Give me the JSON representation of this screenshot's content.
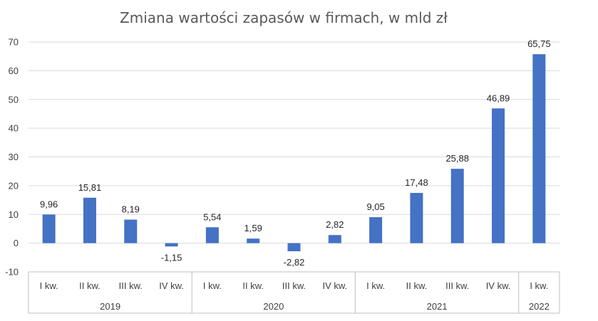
{
  "chart_data": {
    "type": "bar",
    "title": "Zmiana wartości zapasów w firmach, w mld zł",
    "xlabel": "",
    "ylabel": "",
    "ylim": [
      -10,
      70
    ],
    "yticks": [
      -10,
      0,
      10,
      20,
      30,
      40,
      50,
      60,
      70
    ],
    "grid": true,
    "legend": "none",
    "bar_color": "#4472c4",
    "groups": [
      {
        "label": "2019",
        "categories": [
          "I kw.",
          "II kw.",
          "III kw.",
          "IV kw."
        ],
        "values": [
          9.96,
          15.81,
          8.19,
          -1.15
        ],
        "value_labels": [
          "9,96",
          "15,81",
          "8,19",
          "-1,15"
        ]
      },
      {
        "label": "2020",
        "categories": [
          "I kw.",
          "II kw.",
          "III kw.",
          "IV kw."
        ],
        "values": [
          5.54,
          1.59,
          -2.82,
          2.82
        ],
        "value_labels": [
          "5,54",
          "1,59",
          "-2,82",
          "2,82"
        ]
      },
      {
        "label": "2021",
        "categories": [
          "I kw.",
          "II kw.",
          "III kw.",
          "IV kw."
        ],
        "values": [
          9.05,
          17.48,
          25.88,
          46.89
        ],
        "value_labels": [
          "9,05",
          "17,48",
          "25,88",
          "46,89"
        ]
      },
      {
        "label": "2022",
        "categories": [
          "I kw."
        ],
        "values": [
          65.75
        ],
        "value_labels": [
          "65,75"
        ]
      }
    ]
  }
}
